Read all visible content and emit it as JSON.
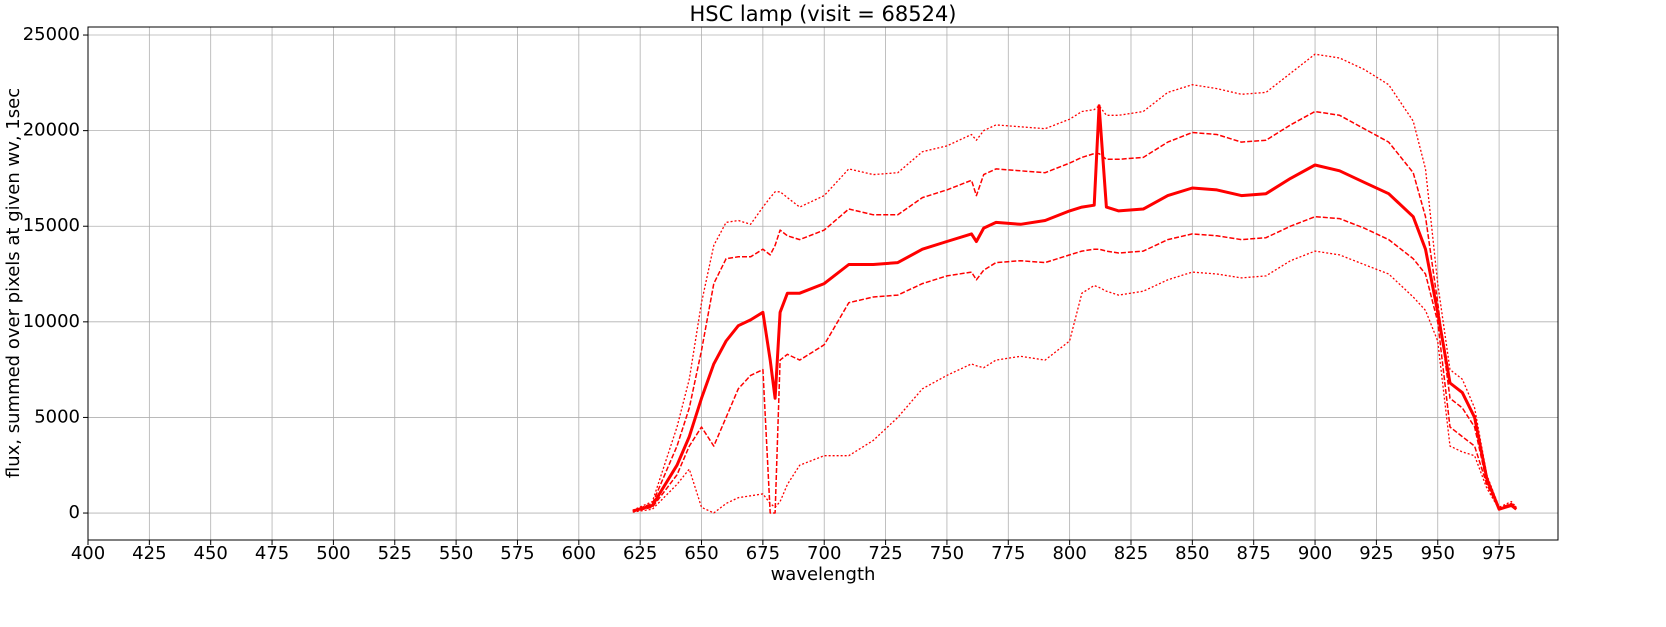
{
  "chart_data": {
    "type": "line",
    "title": "HSC lamp (visit = 68524)",
    "x_label": "wavelength",
    "y_label": "flux, summed over pixels at given wv, 1sec",
    "x": [
      622,
      630,
      640,
      645,
      650,
      655,
      660,
      665,
      670,
      675,
      678,
      680,
      682,
      685,
      690,
      700,
      710,
      720,
      730,
      740,
      750,
      760,
      762,
      765,
      770,
      780,
      790,
      800,
      805,
      810,
      812,
      815,
      820,
      830,
      840,
      850,
      860,
      870,
      880,
      890,
      900,
      910,
      920,
      930,
      940,
      945,
      950,
      955,
      960,
      965,
      970,
      975,
      980,
      982
    ],
    "series": [
      {
        "color": "#ff0000",
        "dash": "2,2",
        "width": 1.3,
        "values": [
          150,
          600,
          4500,
          7000,
          11000,
          14000,
          15200,
          15300,
          15100,
          16000,
          16500,
          16800,
          16800,
          16500,
          16000,
          16600,
          18000,
          17700,
          17800,
          18900,
          19200,
          19800,
          19500,
          20000,
          20300,
          20200,
          20100,
          20600,
          21000,
          21100,
          21300,
          20800,
          20800,
          21000,
          22000,
          22400,
          22200,
          21900,
          22000,
          23000,
          24000,
          23800,
          23200,
          22400,
          20500,
          18000,
          12000,
          7500,
          7000,
          5500,
          2000,
          300,
          600,
          300
        ]
      },
      {
        "color": "#ff0000",
        "dash": "5,2",
        "width": 1.5,
        "values": [
          120,
          500,
          3500,
          5500,
          8500,
          12000,
          13300,
          13400,
          13400,
          13800,
          13500,
          14000,
          14800,
          14500,
          14300,
          14800,
          15900,
          15600,
          15600,
          16500,
          16900,
          17400,
          16600,
          17700,
          18000,
          17900,
          17800,
          18300,
          18600,
          18800,
          18800,
          18500,
          18500,
          18600,
          19400,
          19900,
          19800,
          19400,
          19500,
          20300,
          21000,
          20800,
          20100,
          19400,
          17800,
          15500,
          11000,
          6000,
          5500,
          4500,
          1600,
          250,
          500,
          250
        ]
      },
      {
        "color": "#ff0000",
        "dash": "none",
        "width": 3,
        "values": [
          100,
          400,
          2500,
          4000,
          6000,
          7800,
          9000,
          9800,
          10100,
          10500,
          8000,
          6000,
          10500,
          11500,
          11500,
          12000,
          13000,
          13000,
          13100,
          13800,
          14200,
          14600,
          14200,
          14900,
          15200,
          15100,
          15300,
          15800,
          16000,
          16100,
          21300,
          16000,
          15800,
          15900,
          16600,
          17000,
          16900,
          16600,
          16700,
          17500,
          18200,
          17900,
          17300,
          16700,
          15500,
          13800,
          10500,
          6800,
          6300,
          5000,
          1800,
          200,
          400,
          200
        ]
      },
      {
        "color": "#ff0000",
        "dash": "5,2",
        "width": 1.5,
        "values": [
          80,
          300,
          2000,
          3500,
          4500,
          3500,
          5000,
          6500,
          7200,
          7500,
          0,
          0,
          8000,
          8300,
          8000,
          8800,
          11000,
          11300,
          11400,
          12000,
          12400,
          12600,
          12200,
          12700,
          13100,
          13200,
          13100,
          13500,
          13700,
          13800,
          13800,
          13700,
          13600,
          13700,
          14300,
          14600,
          14500,
          14300,
          14400,
          15000,
          15500,
          15400,
          14900,
          14300,
          13300,
          12500,
          10000,
          4500,
          4000,
          3500,
          1500,
          200,
          400,
          200
        ]
      },
      {
        "color": "#ff0000",
        "dash": "2,2",
        "width": 1.3,
        "values": [
          50,
          200,
          1500,
          2300,
          300,
          0,
          500,
          800,
          900,
          1000,
          500,
          300,
          600,
          1500,
          2500,
          3000,
          3000,
          3800,
          5000,
          6500,
          7200,
          7800,
          7700,
          7600,
          8000,
          8200,
          8000,
          9000,
          11500,
          11900,
          11800,
          11600,
          11400,
          11600,
          12200,
          12600,
          12500,
          12300,
          12400,
          13200,
          13700,
          13500,
          13000,
          12500,
          11300,
          10600,
          9000,
          3500,
          3200,
          3000,
          1300,
          200,
          500,
          300
        ]
      }
    ],
    "xlim": [
      400,
      999
    ],
    "ylim": [
      -1410,
      25420
    ],
    "xticks": [
      400,
      425,
      450,
      475,
      500,
      525,
      550,
      575,
      600,
      625,
      650,
      675,
      700,
      725,
      750,
      775,
      800,
      825,
      850,
      875,
      900,
      925,
      950,
      975
    ],
    "yticks": [
      0,
      5000,
      10000,
      15000,
      20000,
      25000
    ],
    "grid": true
  }
}
